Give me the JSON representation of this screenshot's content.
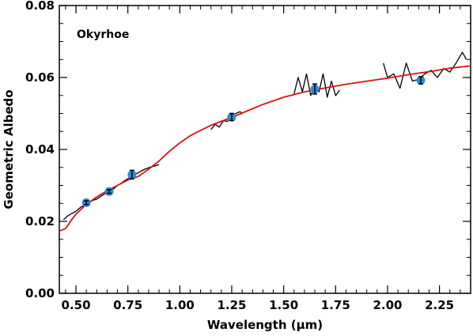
{
  "chart_data": {
    "type": "line",
    "title": "",
    "annotation": "Okyrhoe",
    "xlabel": "Wavelength (μm)",
    "ylabel": "Geometric Albedo",
    "xlim": [
      0.42,
      2.4
    ],
    "ylim": [
      0.0,
      0.08
    ],
    "x_ticks": [
      0.5,
      0.75,
      1.0,
      1.25,
      1.5,
      1.75,
      2.0,
      2.25
    ],
    "x_tick_labels": [
      "0.50",
      "0.75",
      "1.00",
      "1.25",
      "1.50",
      "1.75",
      "2.00",
      "2.25"
    ],
    "y_ticks": [
      0.0,
      0.02,
      0.04,
      0.06,
      0.08
    ],
    "y_tick_labels": [
      "0.00",
      "0.02",
      "0.04",
      "0.06",
      "0.08"
    ],
    "grid": false,
    "colors": {
      "spectrum": "#000000",
      "model": "#e01010",
      "photometry": "#2a8ad8"
    },
    "series": [
      {
        "kind": "spectrum",
        "x": [
          0.44,
          0.46,
          0.48,
          0.5,
          0.52,
          0.54,
          0.56,
          0.58,
          0.6,
          0.62,
          0.64,
          0.66,
          0.68,
          0.7,
          0.72,
          0.74,
          0.76,
          0.78,
          0.8,
          0.82,
          0.84,
          0.86,
          0.88,
          0.9
        ],
        "y": [
          0.0205,
          0.0215,
          0.0222,
          0.0228,
          0.0238,
          0.0245,
          0.0252,
          0.0258,
          0.0262,
          0.027,
          0.0277,
          0.0283,
          0.029,
          0.03,
          0.0307,
          0.0315,
          0.0322,
          0.033,
          0.0335,
          0.0342,
          0.0347,
          0.0351,
          0.0354,
          0.0358
        ]
      },
      {
        "kind": "spectrum",
        "x": [
          1.15,
          1.17,
          1.19,
          1.21,
          1.23,
          1.25,
          1.27,
          1.29,
          1.3
        ],
        "y": [
          0.0455,
          0.047,
          0.0462,
          0.048,
          0.0478,
          0.0492,
          0.05,
          0.0505,
          0.0498
        ]
      },
      {
        "kind": "spectrum",
        "x": [
          1.55,
          1.57,
          1.59,
          1.61,
          1.63,
          1.65,
          1.67,
          1.69,
          1.71,
          1.73,
          1.75,
          1.77
        ],
        "y": [
          0.0555,
          0.06,
          0.056,
          0.061,
          0.055,
          0.0575,
          0.056,
          0.061,
          0.0545,
          0.059,
          0.055,
          0.0565
        ]
      },
      {
        "kind": "spectrum",
        "x": [
          1.98,
          2.0,
          2.03,
          2.06,
          2.09,
          2.12,
          2.15,
          2.18,
          2.21,
          2.24,
          2.27,
          2.3,
          2.33,
          2.36,
          2.38
        ],
        "y": [
          0.064,
          0.06,
          0.061,
          0.057,
          0.064,
          0.059,
          0.0595,
          0.061,
          0.062,
          0.06,
          0.0625,
          0.0615,
          0.064,
          0.067,
          0.065
        ]
      },
      {
        "kind": "model",
        "x": [
          0.42,
          0.45,
          0.48,
          0.5,
          0.55,
          0.6,
          0.65,
          0.7,
          0.75,
          0.8,
          0.85,
          0.9,
          0.95,
          1.0,
          1.05,
          1.1,
          1.15,
          1.2,
          1.25,
          1.3,
          1.4,
          1.5,
          1.6,
          1.7,
          1.8,
          1.9,
          2.0,
          2.1,
          2.2,
          2.3,
          2.4
        ],
        "y": [
          0.0173,
          0.018,
          0.0205,
          0.022,
          0.0247,
          0.0268,
          0.0285,
          0.03,
          0.0315,
          0.0325,
          0.0345,
          0.0368,
          0.0395,
          0.0418,
          0.0438,
          0.0453,
          0.0467,
          0.0478,
          0.0489,
          0.0501,
          0.0525,
          0.0545,
          0.056,
          0.0571,
          0.0581,
          0.059,
          0.0598,
          0.0608,
          0.0616,
          0.0626,
          0.0632
        ]
      },
      {
        "kind": "photometry",
        "x": [
          0.55,
          0.66,
          0.77,
          1.25,
          1.65,
          2.16
        ],
        "y": [
          0.0252,
          0.0283,
          0.033,
          0.049,
          0.0568,
          0.0592
        ],
        "err": [
          0.0005,
          0.0005,
          0.0012,
          0.001,
          0.0014,
          0.001
        ]
      }
    ]
  }
}
